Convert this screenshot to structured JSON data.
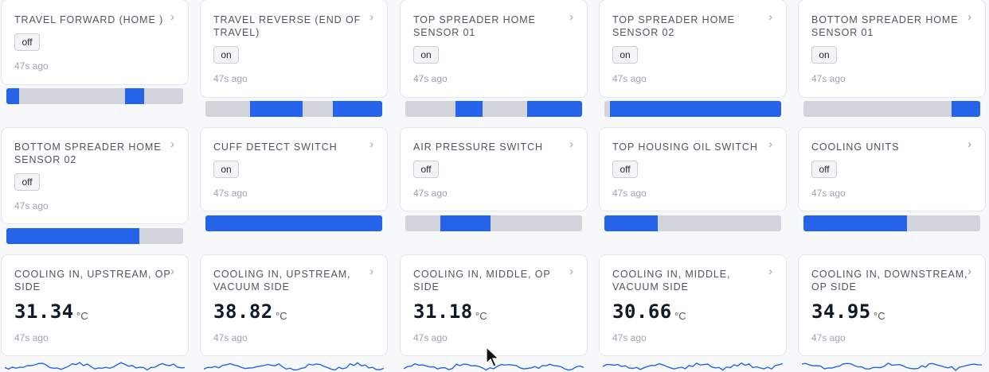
{
  "colors": {
    "accent": "#2563eb",
    "track": "#d1d5db",
    "card": "#ffffff",
    "background": "#f7f8fa"
  },
  "icons": {
    "chevron": "chevron-right-icon",
    "cursor": "mouse-pointer-cursor"
  },
  "chevron_glyph": "›",
  "binary_sensors": [
    {
      "title": "TRAVEL FORWARD (HOME )",
      "state": "off",
      "ago": "47s ago",
      "timeline": [
        [
          0,
          0.07
        ],
        [
          0.67,
          0.78
        ]
      ]
    },
    {
      "title": "TRAVEL REVERSE (END OF\nTRAVEL)",
      "state": "on",
      "ago": "47s ago",
      "timeline": [
        [
          0.25,
          0.55
        ],
        [
          0.72,
          1.0
        ]
      ]
    },
    {
      "title": "TOP SPREADER HOME\nSENSOR 01",
      "state": "on",
      "ago": "47s ago",
      "timeline": [
        [
          0.285,
          0.435
        ],
        [
          0.69,
          1.0
        ]
      ]
    },
    {
      "title": "TOP SPREADER HOME\nSENSOR 02",
      "state": "on",
      "ago": "47s ago",
      "timeline": [
        [
          0.03,
          1.0
        ]
      ]
    },
    {
      "title": "BOTTOM SPREADER HOME\nSENSOR 01",
      "state": "on",
      "ago": "47s ago",
      "timeline": [
        [
          0.84,
          1.0
        ]
      ]
    },
    {
      "title": "BOTTOM SPREADER HOME\nSENSOR 02",
      "state": "off",
      "ago": "47s ago",
      "timeline": [
        [
          0.0,
          0.75
        ]
      ]
    },
    {
      "title": "CUFF DETECT SWITCH",
      "state": "on",
      "ago": "47s ago",
      "timeline": [
        [
          0.0,
          1.0
        ]
      ]
    },
    {
      "title": "AIR PRESSURE SWITCH",
      "state": "off",
      "ago": "47s ago",
      "timeline": [
        [
          0.2,
          0.48
        ]
      ]
    },
    {
      "title": "TOP HOUSING OIL SWITCH",
      "state": "off",
      "ago": "47s ago",
      "timeline": [
        [
          0.0,
          0.3
        ]
      ]
    },
    {
      "title": "COOLING UNITS",
      "state": "off",
      "ago": "47s ago",
      "timeline": [
        [
          0.0,
          0.585
        ]
      ]
    }
  ],
  "temperature_sensors": [
    {
      "title": "COOLING IN, UPSTREAM, OP\nSIDE",
      "value": "31.34",
      "unit": "°C",
      "ago": "47s ago"
    },
    {
      "title": "COOLING IN, UPSTREAM,\nVACUUM SIDE",
      "value": "38.82",
      "unit": "°C",
      "ago": "47s ago"
    },
    {
      "title": "COOLING IN, MIDDLE, OP\nSIDE",
      "value": "31.18",
      "unit": "°C",
      "ago": "47s ago"
    },
    {
      "title": "COOLING IN, MIDDLE,\nVACUUM SIDE",
      "value": "30.66",
      "unit": "°C",
      "ago": "47s ago"
    },
    {
      "title": "COOLING IN, DOWNSTREAM,\nOP SIDE",
      "value": "34.95",
      "unit": "°C",
      "ago": "47s ago"
    }
  ]
}
